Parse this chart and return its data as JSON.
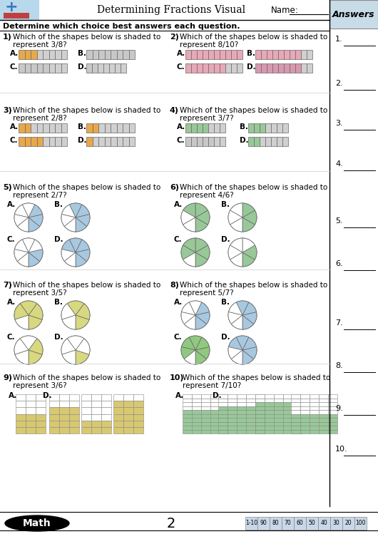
{
  "title": "Determining Fractions Visual",
  "name_label": "Name:",
  "instruction": "Determine which choice best answers each question.",
  "answers_header": "Answers",
  "page_number": "2",
  "score_label": "1-10",
  "scores": [
    "90",
    "80",
    "70",
    "60",
    "50",
    "40",
    "30",
    "20",
    "100"
  ],
  "bar_orange": "#e8a84a",
  "bar_pink": "#e8a8b8",
  "bar_green": "#98c898",
  "bar_gray": "#c8c8c8",
  "bar_pink2": "#d898b0",
  "pie_blue": "#a8c8e0",
  "pie_green": "#98c898",
  "pie_yellow": "#d8d880",
  "pie_green2": "#90c880",
  "grid_yellow": "#d8c870",
  "grid_green": "#98c898",
  "ans_bg": "#c8dce8",
  "header_bg": "#c0d8e8"
}
